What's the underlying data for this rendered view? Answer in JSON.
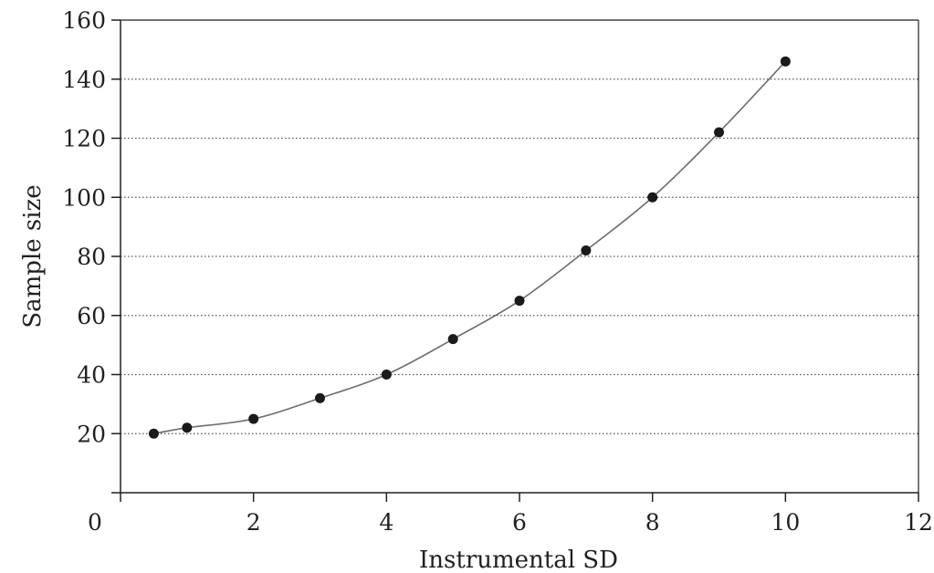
{
  "chart_data": {
    "type": "line",
    "title": "",
    "xlabel": "Instrumental SD",
    "ylabel": "Sample size",
    "xlim": [
      0,
      12
    ],
    "ylim": [
      0,
      160
    ],
    "xticks": [
      0,
      2,
      4,
      6,
      8,
      10,
      12
    ],
    "yticks": [
      20,
      40,
      60,
      80,
      100,
      120,
      140,
      160
    ],
    "grid": "horizontal-dotted",
    "series": [
      {
        "marker": "circle",
        "x": [
          0.5,
          1,
          2,
          3,
          4,
          5,
          6,
          7,
          8,
          9,
          10
        ],
        "y": [
          20,
          22,
          25,
          32,
          40,
          52,
          65,
          82,
          100,
          122,
          146
        ]
      }
    ],
    "colors": {
      "line": "#6d6d6d",
      "marker": "#1a1a1a",
      "axis": "#231f20",
      "grid": "#555555"
    }
  }
}
